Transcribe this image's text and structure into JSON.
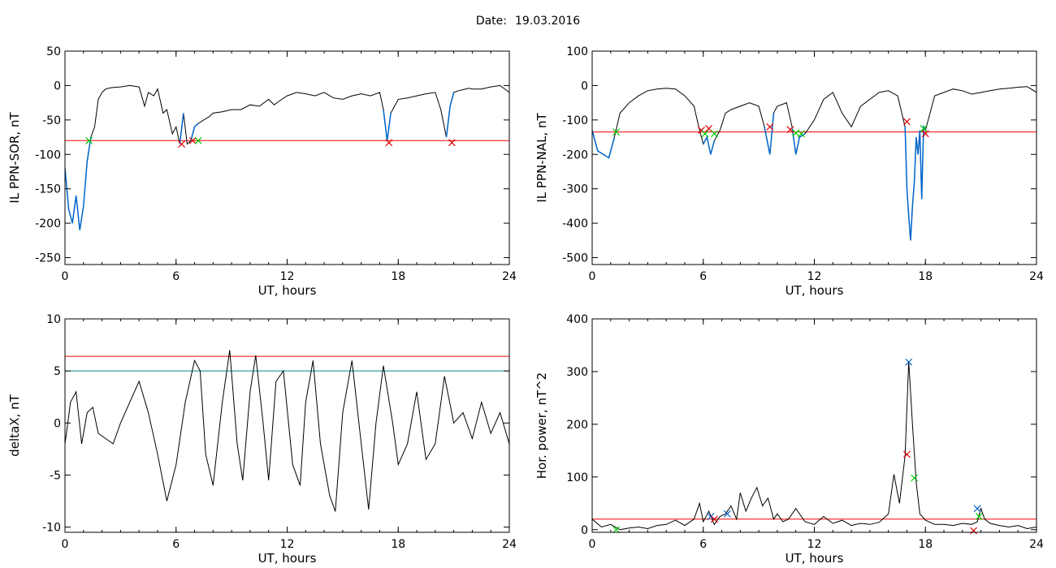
{
  "header": {
    "date_label": "Date:",
    "date_value": "19.03.2016"
  },
  "colors": {
    "data": "#000000",
    "threshold": "#ff0000",
    "threshold2": "#008b8b",
    "highlight": "#0066cc",
    "mark_green": "#00cc00",
    "mark_red": "#dd0000",
    "mark_blue": "#0066cc"
  },
  "chart_data": [
    {
      "type": "line",
      "xlabel": "UT, hours",
      "ylabel": "IL PPN-SOR, nT",
      "xlim": [
        0,
        24
      ],
      "ylim": [
        -260,
        50
      ],
      "xticks": [
        0,
        6,
        12,
        18,
        24
      ],
      "yticks": [
        50,
        0,
        -50,
        -100,
        -150,
        -200,
        -250
      ],
      "threshold": -80,
      "series": {
        "x": [
          0,
          0.2,
          0.4,
          0.6,
          0.8,
          1.0,
          1.2,
          1.4,
          1.6,
          1.8,
          2.0,
          2.2,
          2.5,
          3.0,
          3.5,
          4.0,
          4.3,
          4.5,
          4.8,
          5.0,
          5.3,
          5.5,
          5.8,
          6.0,
          6.2,
          6.4,
          6.6,
          6.8,
          7.0,
          7.2,
          7.5,
          7.8,
          8.0,
          8.5,
          9.0,
          9.5,
          10.0,
          10.5,
          11.0,
          11.3,
          11.6,
          12.0,
          12.5,
          13.0,
          13.5,
          14.0,
          14.5,
          15.0,
          15.5,
          16.0,
          16.5,
          17.0,
          17.2,
          17.4,
          17.6,
          17.8,
          18.0,
          18.5,
          19.0,
          19.5,
          20.0,
          20.3,
          20.6,
          20.8,
          21.0,
          21.2,
          21.5,
          21.8,
          22.0,
          22.5,
          23.0,
          23.5,
          24.0
        ],
        "y": [
          -120,
          -180,
          -200,
          -160,
          -210,
          -175,
          -110,
          -75,
          -60,
          -20,
          -10,
          -5,
          -3,
          -2,
          0,
          -2,
          -30,
          -10,
          -15,
          -5,
          -40,
          -35,
          -70,
          -60,
          -85,
          -40,
          -85,
          -80,
          -60,
          -55,
          -50,
          -45,
          -40,
          -38,
          -35,
          -35,
          -28,
          -30,
          -20,
          -28,
          -22,
          -15,
          -10,
          -12,
          -15,
          -10,
          -18,
          -20,
          -15,
          -12,
          -15,
          -10,
          -35,
          -80,
          -40,
          -30,
          -20,
          -18,
          -15,
          -12,
          -10,
          -35,
          -75,
          -30,
          -10,
          -8,
          -6,
          -4,
          -5,
          -5,
          -2,
          0,
          -10
        ]
      },
      "highlight_x": [
        [
          0,
          1.4
        ],
        [
          6.1,
          6.4
        ],
        [
          6.8,
          7.3
        ],
        [
          17.2,
          17.6
        ],
        [
          20.6,
          21.0
        ]
      ],
      "markers": [
        {
          "x": 1.3,
          "y": -80,
          "color": "green"
        },
        {
          "x": 6.3,
          "y": -85,
          "color": "red"
        },
        {
          "x": 6.9,
          "y": -80,
          "color": "red"
        },
        {
          "x": 7.2,
          "y": -80,
          "color": "green"
        },
        {
          "x": 17.5,
          "y": -83,
          "color": "red"
        },
        {
          "x": 20.9,
          "y": -83,
          "color": "red"
        }
      ]
    },
    {
      "type": "line",
      "xlabel": "UT, hours",
      "ylabel": "IL PPN-NAL, nT",
      "xlim": [
        0,
        24
      ],
      "ylim": [
        -520,
        100
      ],
      "xticks": [
        0,
        6,
        12,
        18,
        24
      ],
      "yticks": [
        100,
        0,
        -100,
        -200,
        -300,
        -400,
        -500
      ],
      "threshold": -135,
      "series": {
        "x": [
          0,
          0.3,
          0.6,
          0.9,
          1.2,
          1.5,
          2.0,
          2.5,
          3.0,
          3.5,
          4.0,
          4.5,
          5.0,
          5.5,
          5.8,
          6.0,
          6.2,
          6.4,
          6.6,
          6.9,
          7.2,
          7.5,
          8.0,
          8.5,
          9.0,
          9.3,
          9.6,
          9.8,
          10.0,
          10.5,
          10.8,
          11.0,
          11.2,
          11.5,
          12.0,
          12.5,
          13.0,
          13.5,
          14.0,
          14.5,
          15.0,
          15.5,
          16.0,
          16.5,
          16.9,
          17.0,
          17.1,
          17.2,
          17.3,
          17.4,
          17.5,
          17.6,
          17.7,
          17.8,
          17.9,
          18.0,
          18.5,
          19.0,
          19.5,
          20.0,
          20.5,
          21.0,
          21.5,
          22.0,
          22.5,
          23.0,
          23.5,
          24.0
        ],
        "y": [
          -130,
          -190,
          -200,
          -210,
          -150,
          -80,
          -50,
          -30,
          -15,
          -10,
          -8,
          -10,
          -30,
          -60,
          -130,
          -170,
          -150,
          -200,
          -160,
          -130,
          -80,
          -70,
          -60,
          -50,
          -60,
          -120,
          -200,
          -80,
          -60,
          -50,
          -120,
          -200,
          -150,
          -140,
          -100,
          -40,
          -20,
          -80,
          -120,
          -60,
          -40,
          -20,
          -15,
          -30,
          -120,
          -300,
          -380,
          -450,
          -350,
          -280,
          -150,
          -200,
          -130,
          -330,
          -120,
          -130,
          -30,
          -20,
          -10,
          -15,
          -25,
          -20,
          -15,
          -10,
          -8,
          -5,
          -3,
          -20
        ]
      },
      "highlight_x": [
        [
          0,
          1.2
        ],
        [
          5.9,
          6.8
        ],
        [
          9.3,
          9.9
        ],
        [
          10.7,
          11.5
        ],
        [
          16.9,
          18.0
        ]
      ],
      "markers": [
        {
          "x": 1.3,
          "y": -135,
          "color": "green"
        },
        {
          "x": 5.9,
          "y": -130,
          "color": "red"
        },
        {
          "x": 6.1,
          "y": -140,
          "color": "green"
        },
        {
          "x": 6.3,
          "y": -125,
          "color": "red"
        },
        {
          "x": 6.6,
          "y": -140,
          "color": "green"
        },
        {
          "x": 9.6,
          "y": -120,
          "color": "red"
        },
        {
          "x": 10.7,
          "y": -128,
          "color": "red"
        },
        {
          "x": 11.0,
          "y": -138,
          "color": "green"
        },
        {
          "x": 11.3,
          "y": -140,
          "color": "green"
        },
        {
          "x": 17.0,
          "y": -105,
          "color": "red"
        },
        {
          "x": 17.9,
          "y": -125,
          "color": "green"
        },
        {
          "x": 18.0,
          "y": -140,
          "color": "red"
        }
      ]
    },
    {
      "type": "line",
      "xlabel": "UT, hours",
      "ylabel": "deltaX, nT",
      "xlim": [
        0,
        24
      ],
      "ylim": [
        -10.5,
        10
      ],
      "xticks": [
        0,
        6,
        12,
        18,
        24
      ],
      "yticks": [
        10,
        5,
        0,
        -5,
        -10
      ],
      "threshold": 6.4,
      "threshold2": 5,
      "series": {
        "x": [
          0,
          0.3,
          0.6,
          0.9,
          1.2,
          1.5,
          1.8,
          2.2,
          2.6,
          3.0,
          3.5,
          4.0,
          4.5,
          5.0,
          5.5,
          6.0,
          6.5,
          7.0,
          7.3,
          7.6,
          8.0,
          8.5,
          8.9,
          9.3,
          9.6,
          10.0,
          10.3,
          10.7,
          11.0,
          11.4,
          11.8,
          12.3,
          12.7,
          13.0,
          13.4,
          13.8,
          14.3,
          14.6,
          15.0,
          15.5,
          16.0,
          16.4,
          16.8,
          17.2,
          17.7,
          18.0,
          18.5,
          19.0,
          19.5,
          20.0,
          20.5,
          21.0,
          21.5,
          22.0,
          22.5,
          23.0,
          23.5,
          24.0
        ],
        "y": [
          -2,
          2,
          3,
          -2,
          1,
          1.5,
          -1,
          -1.5,
          -2,
          0,
          2,
          4,
          1,
          -3,
          -7.5,
          -4,
          2,
          6,
          5,
          -3,
          -6,
          2,
          7,
          -2,
          -5.5,
          3,
          6.5,
          0,
          -5.5,
          4,
          5,
          -4,
          -6,
          2,
          6,
          -2,
          -7,
          -8.5,
          1,
          6,
          -2,
          -8.3,
          0,
          5.5,
          0,
          -4,
          -2,
          3,
          -3.5,
          -2,
          4.5,
          0,
          1,
          -1.5,
          2,
          -1,
          1,
          -2
        ]
      },
      "markers": []
    },
    {
      "type": "line",
      "xlabel": "UT, hours",
      "ylabel": "Hor. power, nT^2",
      "xlim": [
        0,
        24
      ],
      "ylim": [
        -5,
        400
      ],
      "xticks": [
        0,
        6,
        12,
        18,
        24
      ],
      "yticks": [
        400,
        300,
        200,
        100,
        0
      ],
      "threshold": 20,
      "series": {
        "x": [
          0,
          0.5,
          1.0,
          1.5,
          2.0,
          2.5,
          3.0,
          3.5,
          4.0,
          4.5,
          5.0,
          5.5,
          5.8,
          6.0,
          6.3,
          6.6,
          6.9,
          7.2,
          7.5,
          7.8,
          8.0,
          8.3,
          8.6,
          8.9,
          9.2,
          9.5,
          9.8,
          10.0,
          10.3,
          10.6,
          11.0,
          11.5,
          12.0,
          12.5,
          13.0,
          13.5,
          14.0,
          14.5,
          15.0,
          15.5,
          16.0,
          16.3,
          16.6,
          16.9,
          17.1,
          17.3,
          17.5,
          17.7,
          18.0,
          18.5,
          19.0,
          19.5,
          20.0,
          20.5,
          20.8,
          21.0,
          21.2,
          21.5,
          22.0,
          22.5,
          23.0,
          23.5,
          24.0
        ],
        "y": [
          20,
          5,
          10,
          0,
          3,
          5,
          2,
          8,
          10,
          18,
          8,
          20,
          50,
          15,
          35,
          10,
          25,
          30,
          45,
          20,
          70,
          35,
          60,
          80,
          45,
          60,
          20,
          30,
          15,
          20,
          40,
          15,
          10,
          25,
          12,
          18,
          8,
          12,
          10,
          14,
          30,
          105,
          50,
          140,
          320,
          200,
          90,
          30,
          18,
          10,
          10,
          8,
          12,
          10,
          15,
          40,
          20,
          12,
          8,
          5,
          8,
          2,
          5
        ]
      },
      "markers": [
        {
          "x": 1.3,
          "y": 0,
          "color": "green"
        },
        {
          "x": 6.4,
          "y": 25,
          "color": "blue"
        },
        {
          "x": 6.6,
          "y": 20,
          "color": "red"
        },
        {
          "x": 7.3,
          "y": 30,
          "color": "blue"
        },
        {
          "x": 17.1,
          "y": 318,
          "color": "blue"
        },
        {
          "x": 17.0,
          "y": 143,
          "color": "red"
        },
        {
          "x": 17.4,
          "y": 98,
          "color": "green"
        },
        {
          "x": 20.8,
          "y": 40,
          "color": "blue"
        },
        {
          "x": 20.9,
          "y": 25,
          "color": "green"
        },
        {
          "x": 20.6,
          "y": -2,
          "color": "red"
        }
      ]
    }
  ]
}
